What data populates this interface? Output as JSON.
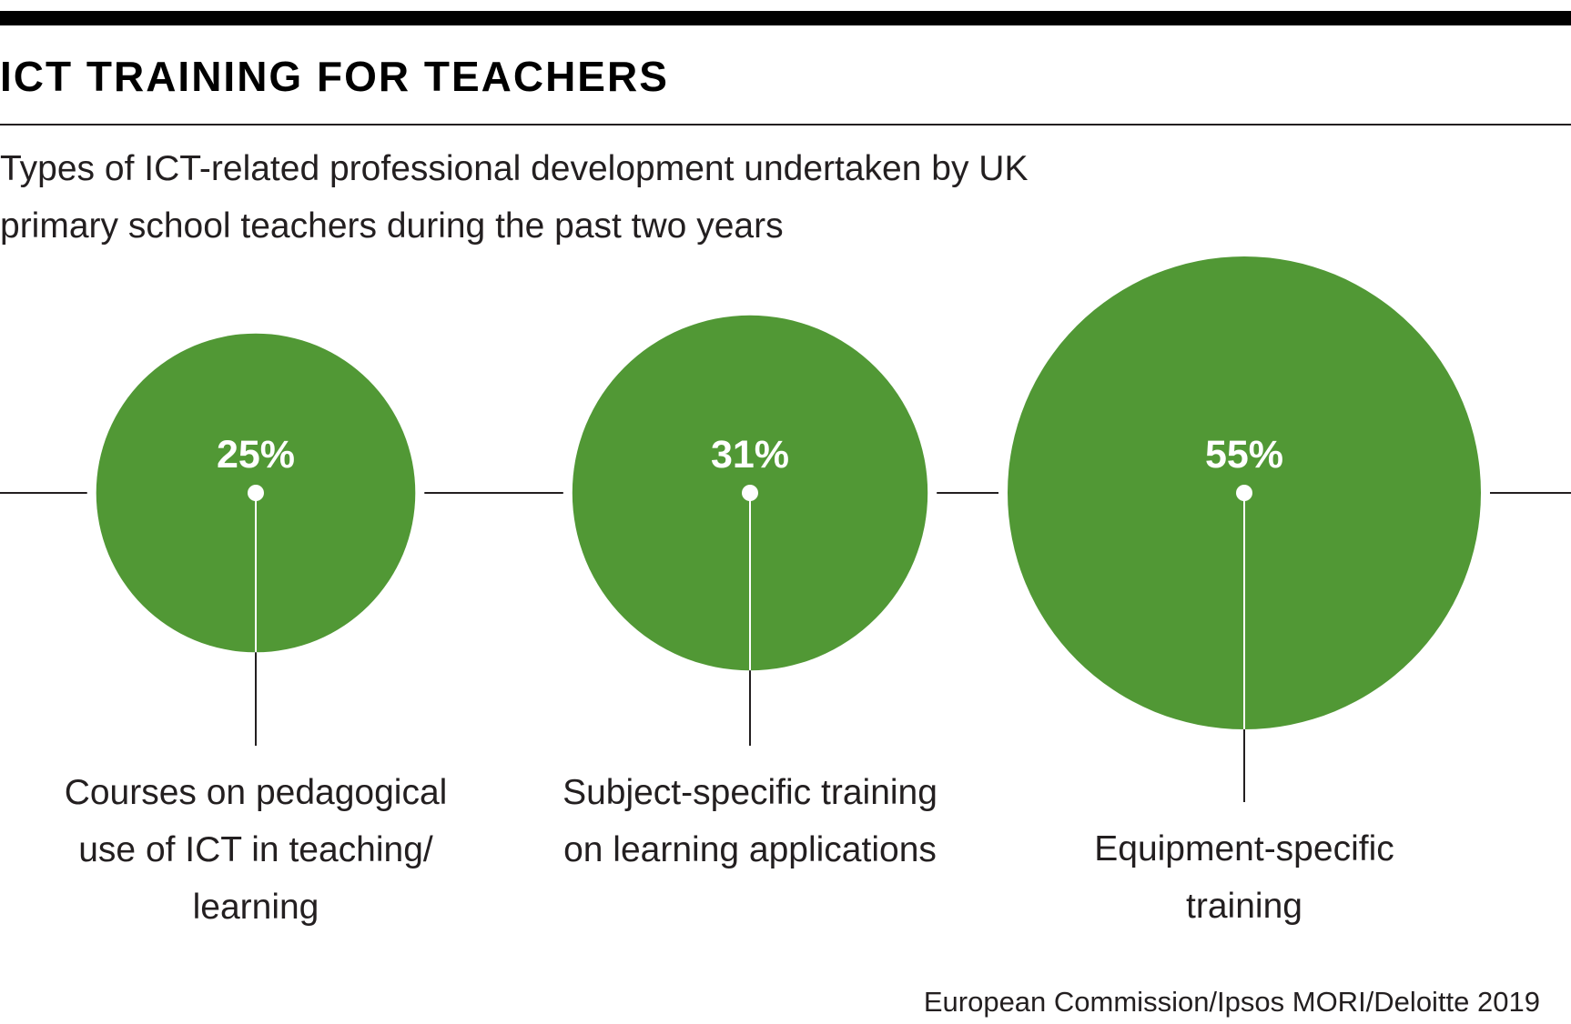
{
  "header": {
    "title": "ICT TRAINING FOR TEACHERS",
    "subtitle": "Types of ICT-related professional development undertaken by UK primary school teachers during the past two years"
  },
  "source": "European Commission/Ipsos MORI/Deloitte 2019",
  "colors": {
    "bubble": "#519835",
    "line": "#231f20",
    "value_text": "#ffffff",
    "dot": "#ffffff"
  },
  "chart_data": {
    "type": "bubble",
    "unit": "%",
    "title": "ICT TRAINING FOR TEACHERS",
    "subtitle": "Types of ICT-related professional development undertaken by UK primary school teachers during the past two years",
    "categories": [
      "Courses on pedagogical use of ICT in teaching/ learning",
      "Subject-specific training on learning applications",
      "Equipment-specific training"
    ],
    "values": [
      25,
      31,
      55
    ],
    "value_labels": [
      "25%",
      "31%",
      "55%"
    ],
    "category_label_lines": [
      [
        "Courses on pedagogical",
        "use of ICT in teaching/",
        "learning"
      ],
      [
        "Subject-specific training",
        "on learning applications"
      ],
      [
        "Equipment-specific",
        "training"
      ]
    ],
    "legend": "none",
    "grid": false
  }
}
